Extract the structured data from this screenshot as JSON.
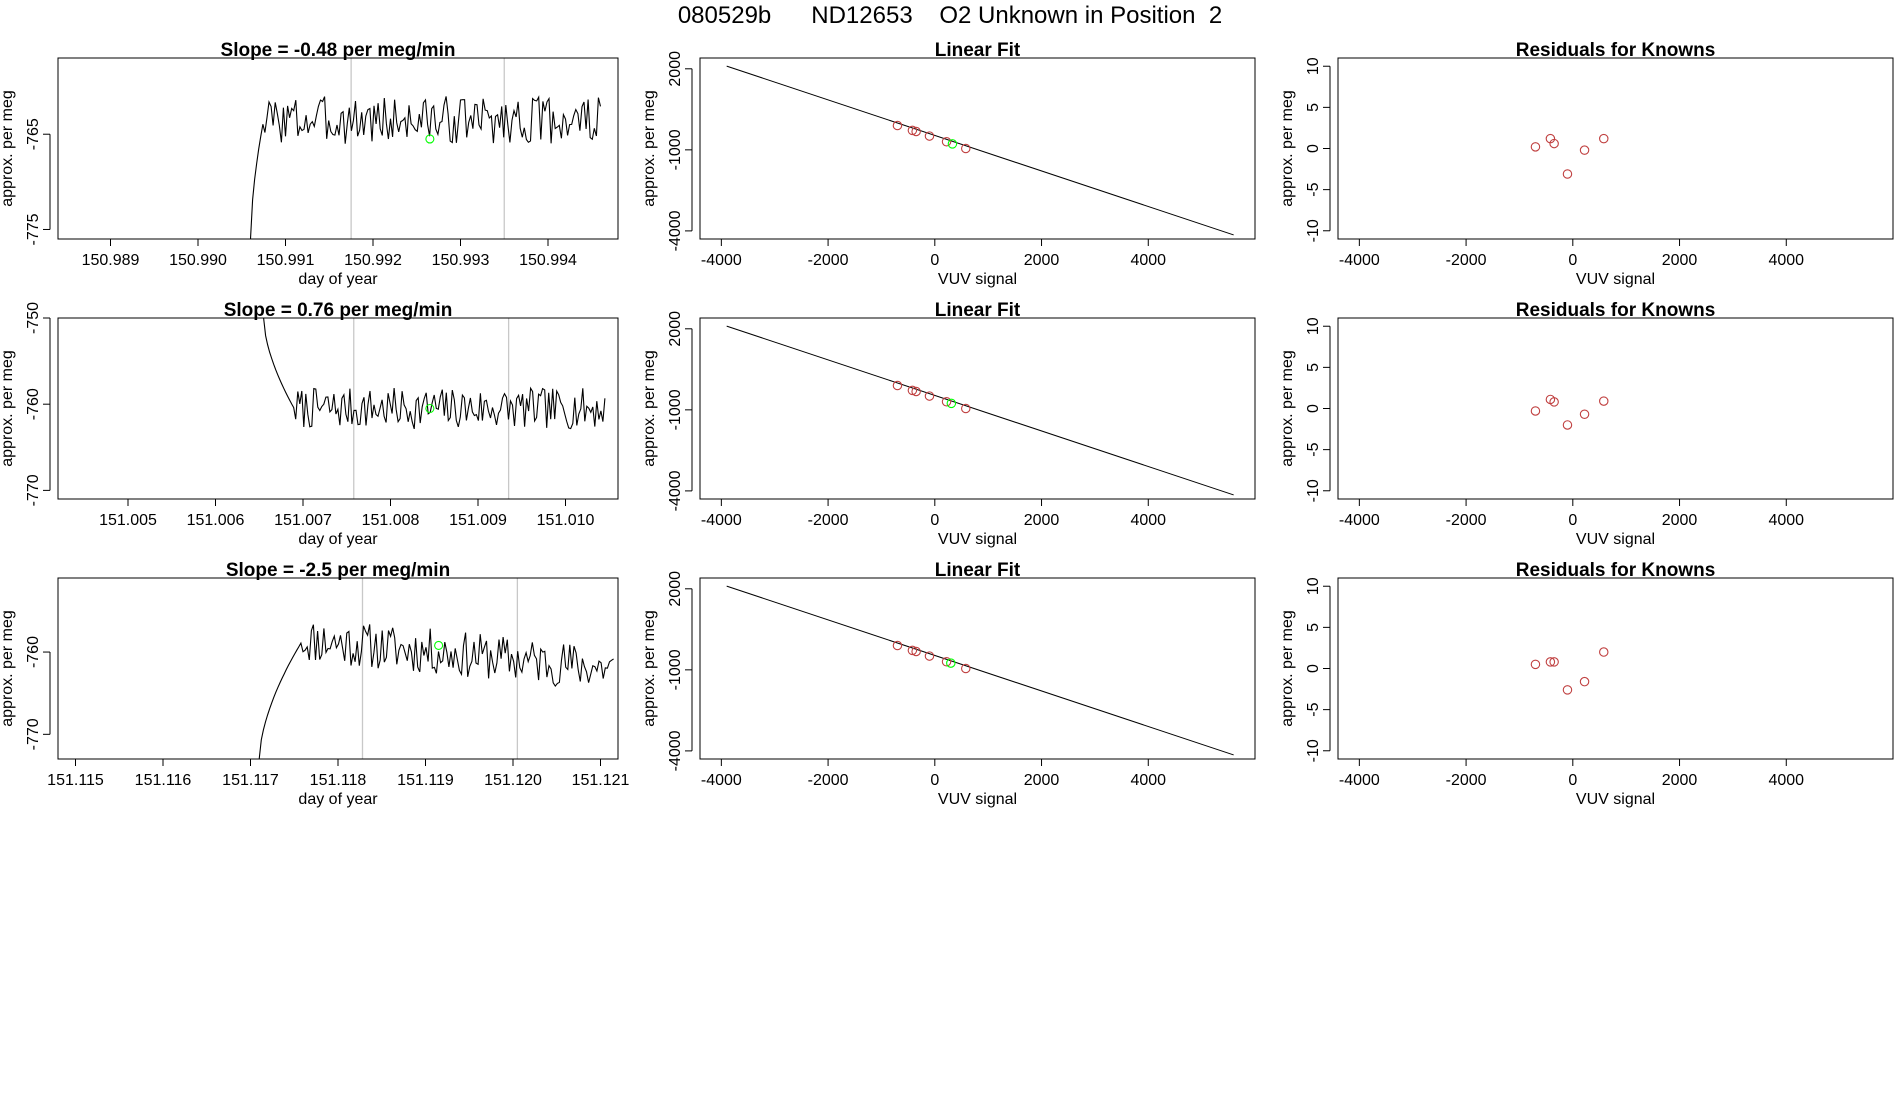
{
  "figure": {
    "title": "080529b      ND12653    O2 Unknown in Position  2"
  },
  "chart_data": [
    {
      "type": "line",
      "panel": "time-series-1",
      "title": "Slope =  -0.48  per meg/min",
      "xlabel": "day of year",
      "ylabel": "approx. per meg",
      "xlim": [
        150.9884,
        150.9948
      ],
      "ylim": [
        -776,
        -757
      ],
      "xticks": [
        150.989,
        150.99,
        150.991,
        150.992,
        150.993,
        150.994
      ],
      "xtick_labels": [
        "150.989",
        "150.990",
        "150.991",
        "150.992",
        "150.993",
        "150.994"
      ],
      "yticks": [
        -775,
        -765
      ],
      "ytick_labels": [
        "-775",
        "-765"
      ],
      "vlines": [
        150.99175,
        150.9935
      ],
      "trace": {
        "x_start": 150.9906,
        "x_end": 150.9946,
        "start_value": -776,
        "plateau": -763.5,
        "rise_end": 150.99075,
        "amplitude": 1.8,
        "seed": 3
      },
      "marker": {
        "x": 150.99265,
        "y": -765.5,
        "color": "#00ff00"
      }
    },
    {
      "type": "scatter",
      "panel": "linear-fit-1",
      "title": "Linear Fit",
      "xlabel": "VUV signal",
      "ylabel": "approx. per meg",
      "xlim": [
        -4400,
        6000
      ],
      "ylim": [
        -4300,
        2400
      ],
      "xticks": [
        -4000,
        -2000,
        0,
        2000,
        4000
      ],
      "xtick_labels": [
        "-4000",
        "-2000",
        "0",
        "2000",
        "4000"
      ],
      "yticks": [
        2000,
        -1000,
        -4000
      ],
      "ytick_labels": [
        "2000",
        "-1000",
        "-4000"
      ],
      "fit_line": {
        "x": [
          -3900,
          5600
        ],
        "y": [
          2100,
          -4150
        ]
      },
      "points": [
        {
          "x": -700,
          "y": -100,
          "color": "#c04040"
        },
        {
          "x": -420,
          "y": -280,
          "color": "#c04040"
        },
        {
          "x": -350,
          "y": -320,
          "color": "#c04040"
        },
        {
          "x": -100,
          "y": -490,
          "color": "#c04040"
        },
        {
          "x": 220,
          "y": -700,
          "color": "#c04040"
        },
        {
          "x": 580,
          "y": -950,
          "color": "#c04040"
        },
        {
          "x": 330,
          "y": -780,
          "color": "#00ff00"
        }
      ]
    },
    {
      "type": "scatter",
      "panel": "residuals-1",
      "title": "Residuals for Knowns",
      "xlabel": "VUV signal",
      "ylabel": "approx. per meg",
      "xlim": [
        -4400,
        6000
      ],
      "ylim": [
        -11,
        11
      ],
      "xticks": [
        -4000,
        -2000,
        0,
        2000,
        4000
      ],
      "xtick_labels": [
        "-4000",
        "-2000",
        "0",
        "2000",
        "4000"
      ],
      "yticks": [
        10,
        5,
        0,
        -5,
        -10
      ],
      "ytick_labels": [
        "10",
        "5",
        "0",
        "-5",
        "-10"
      ],
      "points": [
        {
          "x": -700,
          "y": 0.2,
          "color": "#c04040"
        },
        {
          "x": -420,
          "y": 1.2,
          "color": "#c04040"
        },
        {
          "x": -350,
          "y": 0.6,
          "color": "#c04040"
        },
        {
          "x": -100,
          "y": -3.1,
          "color": "#c04040"
        },
        {
          "x": 220,
          "y": -0.2,
          "color": "#c04040"
        },
        {
          "x": 580,
          "y": 1.2,
          "color": "#c04040"
        }
      ]
    },
    {
      "type": "line",
      "panel": "time-series-2",
      "title": "Slope =  0.76  per meg/min",
      "xlabel": "day of year",
      "ylabel": "approx. per meg",
      "xlim": [
        151.0042,
        151.0106
      ],
      "ylim": [
        -771,
        -750
      ],
      "xticks": [
        151.005,
        151.006,
        151.007,
        151.008,
        151.009,
        151.01
      ],
      "xtick_labels": [
        "151.005",
        "151.006",
        "151.007",
        "151.008",
        "151.009",
        "151.010"
      ],
      "yticks": [
        -750,
        -760,
        -770
      ],
      "ytick_labels": [
        "-750",
        "-760",
        "-770"
      ],
      "vlines": [
        151.00758,
        151.00935
      ],
      "trace": {
        "x_start": 151.00655,
        "x_end": 151.01045,
        "start_value": -750,
        "plateau": -760.5,
        "rise_end": 151.0069,
        "amplitude": 1.7,
        "seed": 7
      },
      "marker": {
        "x": 151.00845,
        "y": -760.5,
        "color": "#00ff00"
      }
    },
    {
      "type": "scatter",
      "panel": "linear-fit-2",
      "title": "Linear Fit",
      "xlabel": "VUV signal",
      "ylabel": "approx. per meg",
      "xlim": [
        -4400,
        6000
      ],
      "ylim": [
        -4300,
        2400
      ],
      "xticks": [
        -4000,
        -2000,
        0,
        2000,
        4000
      ],
      "xtick_labels": [
        "-4000",
        "-2000",
        "0",
        "2000",
        "4000"
      ],
      "yticks": [
        2000,
        -1000,
        -4000
      ],
      "ytick_labels": [
        "2000",
        "-1000",
        "-4000"
      ],
      "fit_line": {
        "x": [
          -3900,
          5600
        ],
        "y": [
          2100,
          -4150
        ]
      },
      "points": [
        {
          "x": -700,
          "y": -100,
          "color": "#c04040"
        },
        {
          "x": -420,
          "y": -280,
          "color": "#c04040"
        },
        {
          "x": -350,
          "y": -320,
          "color": "#c04040"
        },
        {
          "x": -100,
          "y": -490,
          "color": "#c04040"
        },
        {
          "x": 220,
          "y": -700,
          "color": "#c04040"
        },
        {
          "x": 580,
          "y": -950,
          "color": "#c04040"
        },
        {
          "x": 310,
          "y": -760,
          "color": "#00ff00"
        }
      ]
    },
    {
      "type": "scatter",
      "panel": "residuals-2",
      "title": "Residuals for Knowns",
      "xlabel": "VUV signal",
      "ylabel": "approx. per meg",
      "xlim": [
        -4400,
        6000
      ],
      "ylim": [
        -11,
        11
      ],
      "xticks": [
        -4000,
        -2000,
        0,
        2000,
        4000
      ],
      "xtick_labels": [
        "-4000",
        "-2000",
        "0",
        "2000",
        "4000"
      ],
      "yticks": [
        10,
        5,
        0,
        -5,
        -10
      ],
      "ytick_labels": [
        "10",
        "5",
        "0",
        "-5",
        "-10"
      ],
      "points": [
        {
          "x": -700,
          "y": -0.3,
          "color": "#c04040"
        },
        {
          "x": -420,
          "y": 1.1,
          "color": "#c04040"
        },
        {
          "x": -350,
          "y": 0.8,
          "color": "#c04040"
        },
        {
          "x": -100,
          "y": -2.0,
          "color": "#c04040"
        },
        {
          "x": 220,
          "y": -0.7,
          "color": "#c04040"
        },
        {
          "x": 580,
          "y": 0.9,
          "color": "#c04040"
        }
      ]
    },
    {
      "type": "line",
      "panel": "time-series-3",
      "title": "Slope =  -2.5  per meg/min",
      "xlabel": "day of year",
      "ylabel": "approx. per meg",
      "xlim": [
        151.1148,
        151.1212
      ],
      "ylim": [
        -773,
        -751
      ],
      "xticks": [
        151.115,
        151.116,
        151.117,
        151.118,
        151.119,
        151.12,
        151.121
      ],
      "xtick_labels": [
        "151.115",
        "151.116",
        "151.117",
        "151.118",
        "151.119",
        "151.120",
        "151.121"
      ],
      "yticks": [
        -760,
        -770
      ],
      "ytick_labels": [
        "-760",
        "-770"
      ],
      "vlines": [
        151.11828,
        151.12005
      ],
      "trace": {
        "x_start": 151.1171,
        "x_end": 151.12115,
        "start_value": -773,
        "plateau": -758.5,
        "rise_end": 151.1176,
        "amplitude": 2.0,
        "seed": 11,
        "drift": -3.5
      },
      "marker": {
        "x": 151.11915,
        "y": -759.2,
        "color": "#00ff00"
      }
    },
    {
      "type": "scatter",
      "panel": "linear-fit-3",
      "title": "Linear Fit",
      "xlabel": "VUV signal",
      "ylabel": "approx. per meg",
      "xlim": [
        -4400,
        6000
      ],
      "ylim": [
        -4300,
        2400
      ],
      "xticks": [
        -4000,
        -2000,
        0,
        2000,
        4000
      ],
      "xtick_labels": [
        "-4000",
        "-2000",
        "0",
        "2000",
        "4000"
      ],
      "yticks": [
        2000,
        -1000,
        -4000
      ],
      "ytick_labels": [
        "2000",
        "-1000",
        "-4000"
      ],
      "fit_line": {
        "x": [
          -3900,
          5600
        ],
        "y": [
          2100,
          -4150
        ]
      },
      "points": [
        {
          "x": -700,
          "y": -100,
          "color": "#c04040"
        },
        {
          "x": -420,
          "y": -280,
          "color": "#c04040"
        },
        {
          "x": -350,
          "y": -320,
          "color": "#c04040"
        },
        {
          "x": -100,
          "y": -490,
          "color": "#c04040"
        },
        {
          "x": 220,
          "y": -700,
          "color": "#c04040"
        },
        {
          "x": 580,
          "y": -950,
          "color": "#c04040"
        },
        {
          "x": 300,
          "y": -750,
          "color": "#00ff00"
        }
      ]
    },
    {
      "type": "scatter",
      "panel": "residuals-3",
      "title": "Residuals for Knowns",
      "xlabel": "VUV signal",
      "ylabel": "approx. per meg",
      "xlim": [
        -4400,
        6000
      ],
      "ylim": [
        -11,
        11
      ],
      "xticks": [
        -4000,
        -2000,
        0,
        2000,
        4000
      ],
      "xtick_labels": [
        "-4000",
        "-2000",
        "0",
        "2000",
        "4000"
      ],
      "yticks": [
        10,
        5,
        0,
        -5,
        -10
      ],
      "ytick_labels": [
        "10",
        "5",
        "0",
        "-5",
        "-10"
      ],
      "points": [
        {
          "x": -700,
          "y": 0.5,
          "color": "#c04040"
        },
        {
          "x": -420,
          "y": 0.8,
          "color": "#c04040"
        },
        {
          "x": -350,
          "y": 0.8,
          "color": "#c04040"
        },
        {
          "x": -100,
          "y": -2.6,
          "color": "#c04040"
        },
        {
          "x": 220,
          "y": -1.6,
          "color": "#c04040"
        },
        {
          "x": 580,
          "y": 2.0,
          "color": "#c04040"
        }
      ]
    }
  ]
}
